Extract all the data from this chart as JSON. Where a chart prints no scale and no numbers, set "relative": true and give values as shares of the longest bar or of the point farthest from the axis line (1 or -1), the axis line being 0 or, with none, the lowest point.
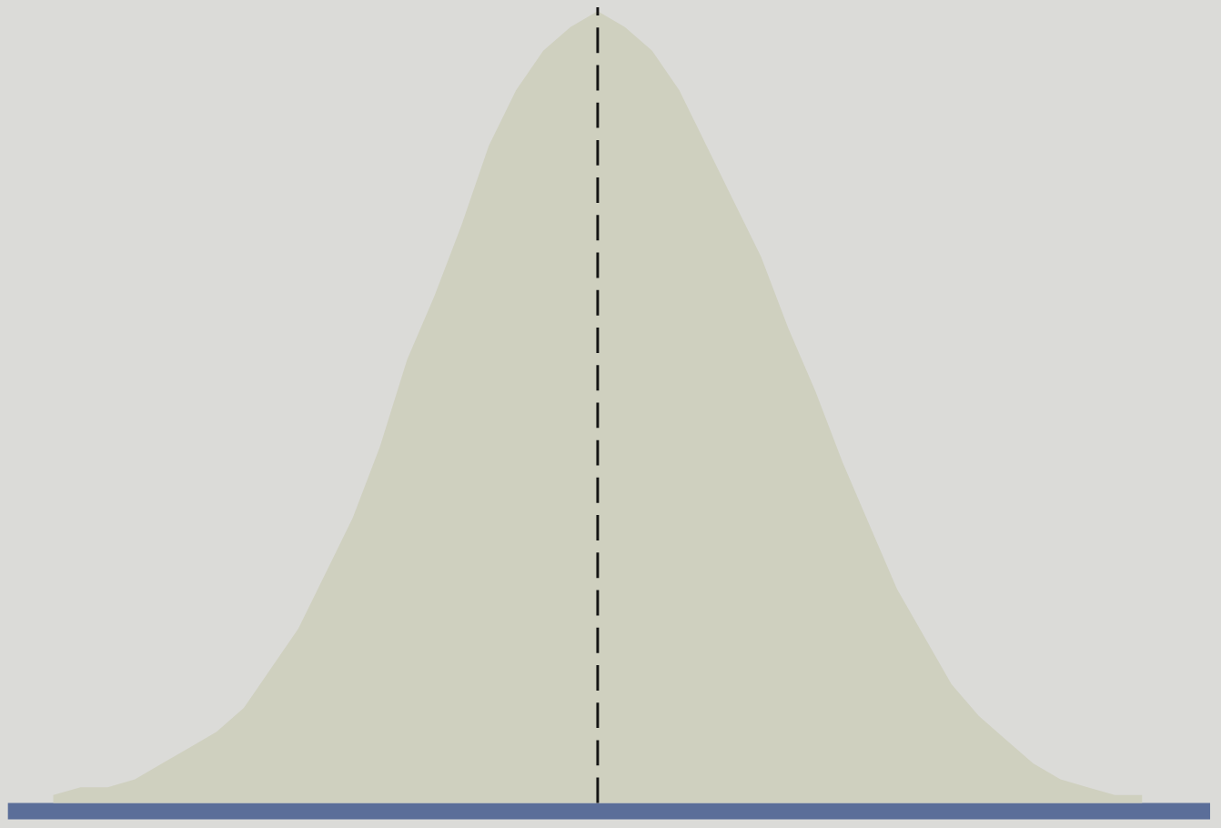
{
  "chart_data": {
    "type": "area",
    "relative": true,
    "categories": [
      null,
      null,
      null,
      null,
      null,
      null,
      null,
      null,
      null,
      null,
      null,
      null,
      null,
      null,
      null,
      null,
      null,
      null,
      null,
      null,
      null,
      null,
      null,
      null,
      null,
      null,
      null,
      null,
      null,
      null,
      null,
      null,
      null,
      null,
      null,
      null,
      null,
      null,
      null,
      null,
      null
    ],
    "values": [
      0.01,
      0.02,
      0.02,
      0.03,
      0.05,
      0.07,
      0.09,
      0.12,
      0.17,
      0.22,
      0.29,
      0.36,
      0.45,
      0.56,
      0.64,
      0.73,
      0.83,
      0.9,
      0.95,
      0.98,
      1,
      0.98,
      0.95,
      0.9,
      0.83,
      0.76,
      0.69,
      0.6,
      0.52,
      0.43,
      0.35,
      0.27,
      0.21,
      0.15,
      0.11,
      0.08,
      0.05,
      0.03,
      0.02,
      0.01,
      0.01
    ],
    "color": "#cfd0bf"
  }
}
